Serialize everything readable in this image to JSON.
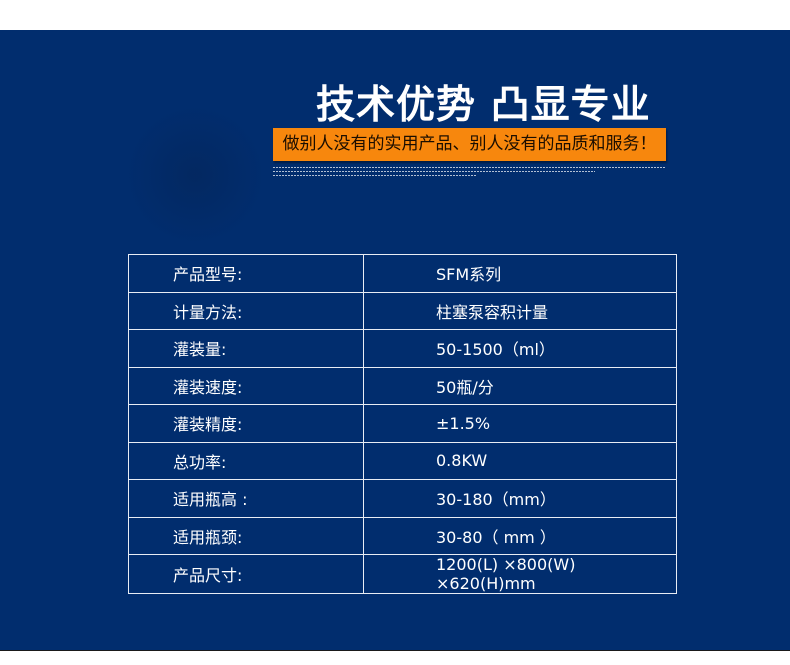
{
  "header": {
    "title": "技术优势 凸显专业",
    "slogan": "做别人没有的实用产品、别人没有的品质和服务！"
  },
  "colors": {
    "background": "#012d6e",
    "accent": "#f7870d",
    "text": "#ffffff"
  },
  "specs": [
    {
      "label": "产品型号:",
      "value": "SFM系列"
    },
    {
      "label": "计量方法:",
      "value": "柱塞泵容积计量"
    },
    {
      "label": "灌装量:",
      "value": "50-1500（ml）"
    },
    {
      "label": "灌装速度:",
      "value": "50瓶/分"
    },
    {
      "label": "灌装精度:",
      "value": "±1.5%"
    },
    {
      "label": "总功率:",
      "value": "0.8KW"
    },
    {
      "label": "适用瓶高 :",
      "value": "30-180（mm）"
    },
    {
      "label": "适用瓶颈:",
      "value": "30-80（ mm ）"
    },
    {
      "label": "产品尺寸:",
      "value": "1200(L) ×800(W) ×620(H)mm"
    }
  ]
}
